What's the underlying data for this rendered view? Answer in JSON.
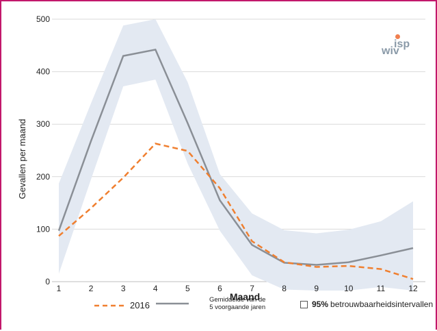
{
  "logo": {
    "line1": "isp",
    "line2": "wiv",
    "accent": "#f07f4f"
  },
  "legend": {
    "series_2016": "2016",
    "series_avg_line1": "Gemiddelde van de",
    "series_avg_line2": "5 voorgaande jaren",
    "ci_prefix": "95%",
    "ci_label": "betrouwbaarheidsintervallen"
  },
  "colors": {
    "border": "#c2186b",
    "band": "#e3e9f2",
    "avg": "#8a8f96",
    "y2016": "#f07f2f",
    "grid": "#d9d9d9"
  },
  "chart_data": {
    "type": "line",
    "xlabel": "Maand",
    "ylabel": "Gevallen per maand",
    "x": [
      1,
      2,
      3,
      4,
      5,
      6,
      7,
      8,
      9,
      10,
      11,
      12
    ],
    "ylim": [
      0,
      500
    ],
    "yticks": [
      0,
      100,
      200,
      300,
      400,
      500
    ],
    "grid": true,
    "legend_placement": "bottom",
    "series": [
      {
        "name": "2016",
        "style": "dashed",
        "values": [
          87,
          140,
          198,
          263,
          249,
          178,
          77,
          37,
          28,
          30,
          24,
          5
        ]
      },
      {
        "name": "Gemiddelde van de 5 voorgaande jaren",
        "style": "solid",
        "values": [
          97,
          268,
          430,
          442,
          302,
          155,
          70,
          36,
          32,
          37,
          50,
          64
        ]
      }
    ],
    "band": {
      "name": "95% betrouwbaarheidsintervallen",
      "upper": [
        187,
        340,
        488,
        500,
        380,
        205,
        130,
        98,
        92,
        99,
        115,
        153
      ],
      "lower": [
        15,
        195,
        372,
        385,
        225,
        97,
        12,
        -15,
        -18,
        -20,
        -10,
        -22
      ]
    }
  }
}
